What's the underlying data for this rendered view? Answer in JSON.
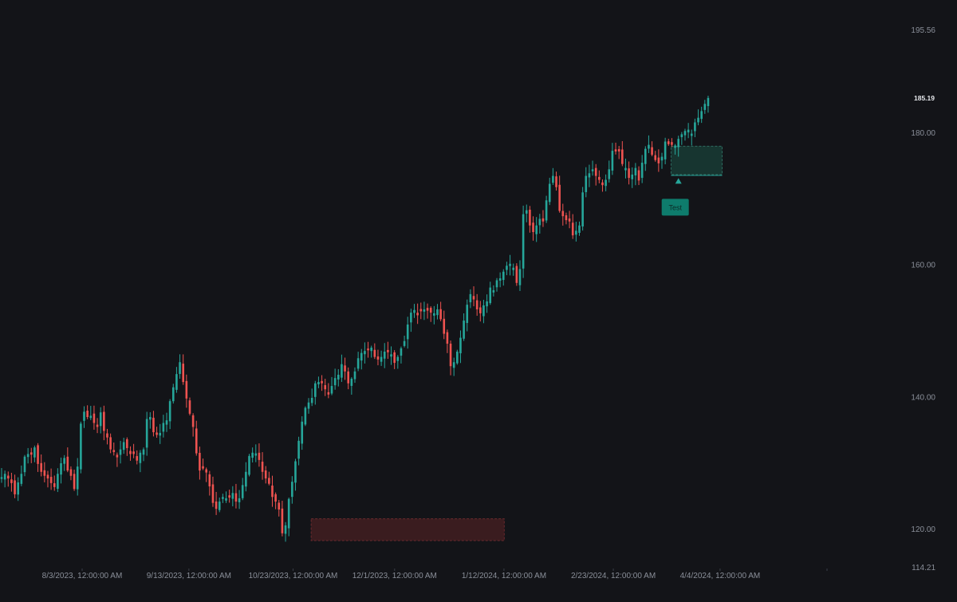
{
  "chart_data": {
    "type": "candlestick",
    "title": "",
    "xlabel": "",
    "ylabel": "",
    "grid": false,
    "ylim": [
      114.21,
      195.56
    ],
    "y_ticks": [
      {
        "value": 195.56,
        "label": "195.56"
      },
      {
        "value": 180,
        "label": "180.00"
      },
      {
        "value": 160,
        "label": "160.00"
      },
      {
        "value": 140,
        "label": "140.00"
      },
      {
        "value": 120,
        "label": "120.00"
      },
      {
        "value": 114.21,
        "label": "114.21"
      }
    ],
    "last_price": {
      "value": 185.19,
      "label": "185.19"
    },
    "x_ticks": [
      {
        "date": "2023-08-03",
        "label": "8/3/2023, 12:00:00 AM"
      },
      {
        "date": "2023-09-13",
        "label": "9/13/2023, 12:00:00 AM"
      },
      {
        "date": "2023-10-23",
        "label": "10/23/2023, 12:00:00 AM"
      },
      {
        "date": "2023-12-01",
        "label": "12/1/2023, 12:00:00 AM"
      },
      {
        "date": "2024-01-12",
        "label": "1/12/2024, 12:00:00 AM"
      },
      {
        "date": "2024-02-23",
        "label": "2/23/2024, 12:00:00 AM"
      },
      {
        "date": "2024-04-04",
        "label": "4/4/2024, 12:00:00 AM"
      }
    ],
    "colors": {
      "up": "#26a69a",
      "down": "#ef5350",
      "background": "#131418",
      "axis_text": "#8a8f99",
      "last_price_text": "#e6e8ec",
      "down_zone_fill": "#3a1c1f",
      "up_zone_fill": "#173530",
      "marker": "#0e7c6c"
    },
    "closes": [
      127.8,
      128.3,
      127.6,
      126.9,
      125.2,
      127.0,
      128.3,
      130.9,
      131.3,
      131.2,
      132.3,
      129.8,
      128.6,
      128.0,
      127.6,
      126.9,
      126.3,
      128.3,
      129.9,
      130.7,
      128.8,
      128.0,
      126.0,
      129.4,
      135.9,
      137.7,
      136.9,
      137.1,
      136.0,
      135.4,
      137.6,
      134.8,
      133.8,
      132.0,
      131.6,
      130.8,
      132.0,
      133.1,
      132.2,
      131.3,
      131.3,
      130.3,
      131.5,
      132.0,
      136.6,
      136.9,
      134.6,
      134.2,
      134.5,
      136.0,
      136.4,
      139.3,
      141.4,
      143.4,
      145.2,
      142.2,
      139.7,
      137.4,
      135.4,
      131.4,
      128.8,
      129.1,
      128.5,
      126.4,
      123.9,
      123.0,
      124.1,
      124.8,
      124.6,
      124.7,
      125.4,
      124.1,
      124.6,
      126.6,
      128.6,
      131.0,
      131.5,
      131.4,
      130.4,
      128.6,
      127.6,
      126.8,
      124.8,
      124.1,
      122.9,
      119.3,
      120.5,
      124.5,
      127.1,
      130.2,
      133.3,
      136.2,
      138.3,
      139.1,
      139.8,
      142.0,
      142.2,
      142.0,
      141.1,
      140.3,
      141.6,
      142.8,
      143.3,
      144.9,
      143.8,
      142.0,
      142.7,
      143.8,
      145.8,
      146.6,
      146.9,
      147.0,
      147.4,
      146.0,
      145.6,
      146.0,
      146.8,
      146.7,
      146.4,
      145.1,
      146.0,
      147.3,
      148.4,
      150.9,
      152.7,
      153.1,
      152.3,
      152.9,
      153.2,
      153.0,
      152.7,
      152.6,
      153.2,
      151.7,
      149.5,
      148.0,
      144.6,
      145.2,
      146.8,
      148.9,
      151.5,
      153.9,
      155.5,
      154.7,
      153.2,
      152.6,
      153.8,
      154.4,
      156.5,
      156.1,
      157.6,
      157.9,
      158.9,
      159.8,
      160.1,
      159.5,
      157.2,
      159.3,
      167.6,
      168.2,
      165.9,
      164.9,
      165.9,
      166.9,
      166.5,
      169.7,
      172.2,
      173.4,
      171.7,
      168.1,
      167.3,
      166.7,
      166.5,
      164.4,
      165.1,
      165.9,
      170.9,
      173.4,
      173.8,
      174.4,
      173.4,
      172.8,
      172.0,
      172.8,
      174.4,
      177.2,
      177.1,
      177.1,
      175.2,
      174.6,
      173.1,
      173.6,
      174.6,
      172.7,
      175.4,
      177.5,
      178.1,
      176.6,
      175.8,
      175.3,
      176.3,
      178.6,
      178.2,
      178.1,
      178.0,
      179.0,
      179.7,
      180.2,
      180.4,
      179.8,
      181.5,
      182.2,
      183.2,
      184.3,
      185.2
    ],
    "zones": [
      {
        "start_index": 94,
        "end_index": 152,
        "y_top": 121.5,
        "y_bottom": 118.2,
        "direction": "down"
      },
      {
        "start_index": 203,
        "end_index": 218,
        "y_top": 177.9,
        "y_bottom": 173.6,
        "direction": "up"
      }
    ],
    "annotations": [
      {
        "index": 205,
        "price": 172.7,
        "text": "Test",
        "shape": "arrow-up"
      }
    ]
  }
}
